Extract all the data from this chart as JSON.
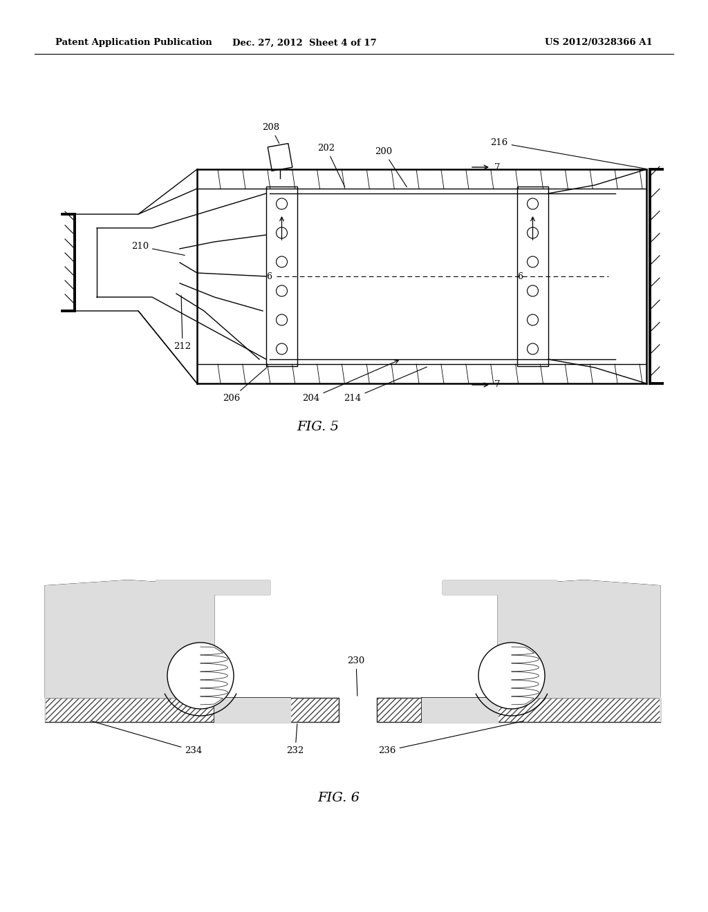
{
  "bg_color": "#ffffff",
  "header_left": "Patent Application Publication",
  "header_center": "Dec. 27, 2012  Sheet 4 of 17",
  "header_right": "US 2012/0328366 A1",
  "fig5_caption": "FIG. 5",
  "fig6_caption": "FIG. 6",
  "line_color": "#000000"
}
